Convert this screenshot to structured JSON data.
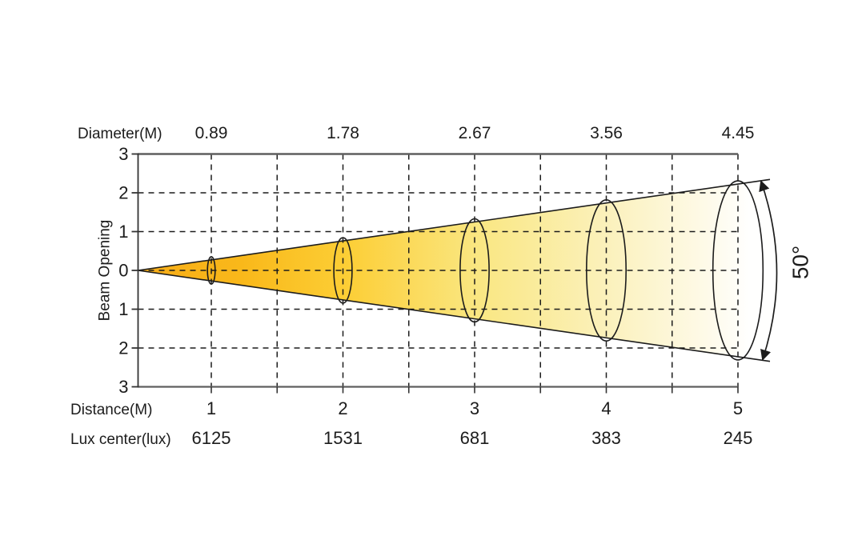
{
  "page": {
    "background": "#ffffff"
  },
  "chart_data": {
    "type": "area",
    "subtype": "beam-photometric-cone",
    "axes": {
      "top_label": "Diameter(M)",
      "left_label": "Beam Opening",
      "bottom_label": "Distance(M)",
      "lux_label": "Lux center(lux)",
      "y_tick_labels": [
        "3",
        "2",
        "1",
        "0",
        "1",
        "2",
        "3"
      ],
      "y_range": [
        -3,
        3
      ],
      "x_range": [
        1,
        5
      ],
      "x_grid_step": 0.5,
      "grid_dashed": true
    },
    "distances_m": [
      "1",
      "2",
      "3",
      "4",
      "5"
    ],
    "diameters_m": [
      "0.89",
      "1.78",
      "2.67",
      "3.56",
      "4.45"
    ],
    "lux_center": [
      "6125",
      "1531",
      "681",
      "383",
      "245"
    ],
    "beam_angle_deg": 50,
    "beam_angle_label": "50°",
    "colors": {
      "cone_gradient": [
        "#F7AC17",
        "#F9B81A",
        "#FCCE35",
        "#FAE783",
        "#FBF1BC",
        "#FEFAE8",
        "#FFFFFE"
      ],
      "cone_gradient_offsets": [
        0,
        0.17,
        0.34,
        0.56,
        0.77,
        0.93,
        1
      ],
      "outline": "#1c1c1c",
      "grid_line": "#1c1c1c",
      "border_line": "#5f5f5f",
      "axis_line": "#333333",
      "text": "#1c1c1c"
    }
  }
}
